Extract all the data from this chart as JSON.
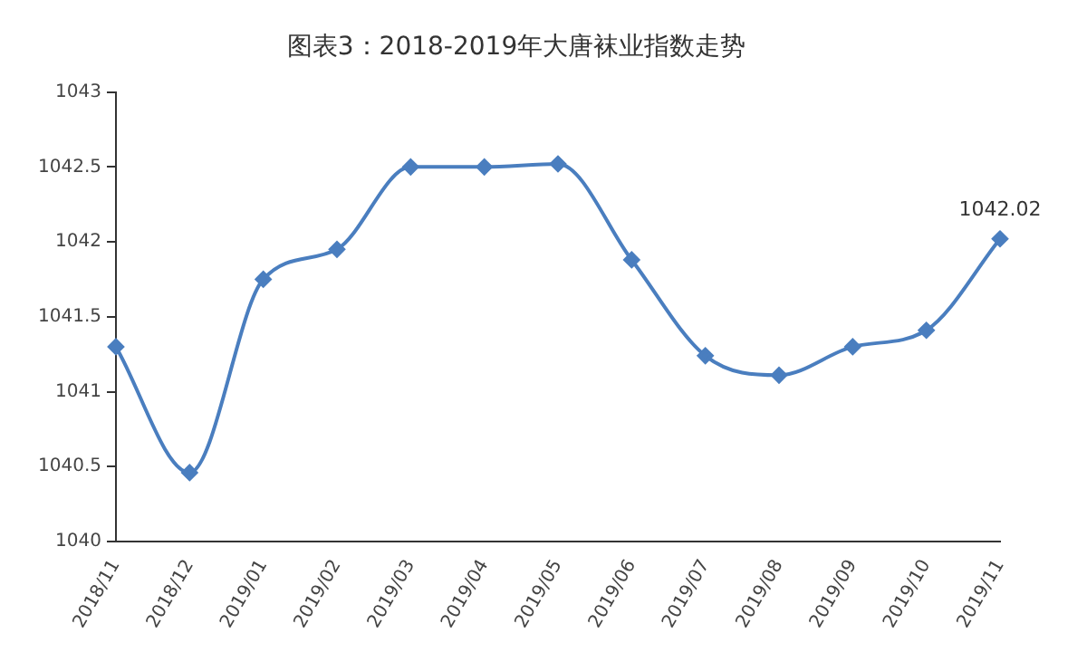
{
  "chart_data": {
    "type": "line",
    "title": "图表3：2018-2019年大唐袜业指数走势",
    "categories": [
      "2018/11",
      "2018/12",
      "2019/01",
      "2019/02",
      "2019/03",
      "2019/04",
      "2019/05",
      "2019/06",
      "2019/07",
      "2019/08",
      "2019/09",
      "2019/10",
      "2019/11"
    ],
    "series": [
      {
        "color": "#4a7ebf",
        "values": [
          1041.3,
          1040.46,
          1041.75,
          1041.95,
          1042.5,
          1042.5,
          1042.52,
          1041.88,
          1041.24,
          1041.11,
          1041.3,
          1041.41,
          1042.02
        ],
        "value_labels": [
          null,
          null,
          null,
          null,
          null,
          null,
          null,
          null,
          null,
          null,
          null,
          null,
          "1042.02"
        ]
      }
    ],
    "ylim": [
      1040,
      1043
    ],
    "yticks": [
      1040,
      1040.5,
      1041,
      1041.5,
      1042,
      1042.5,
      1043
    ],
    "grid": false,
    "legend": false,
    "marker": "diamond",
    "line_style": "solid"
  }
}
